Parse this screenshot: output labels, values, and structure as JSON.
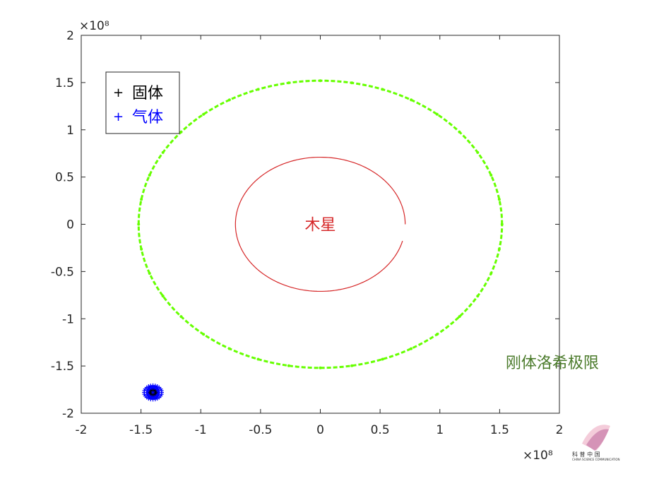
{
  "chart_data": {
    "type": "line",
    "title": "",
    "xlabel": "",
    "ylabel": "",
    "xlim": [
      -2,
      2
    ],
    "ylim": [
      -2,
      2
    ],
    "x_ticks": [
      -2,
      -1.5,
      -1,
      -0.5,
      0,
      0.5,
      1,
      1.5,
      2
    ],
    "y_ticks": [
      -2,
      -1.5,
      -1,
      -0.5,
      0,
      0.5,
      1,
      1.5,
      2
    ],
    "x_tick_labels": [
      "-2",
      "-1.5",
      "-1",
      "-0.5",
      "0",
      "0.5",
      "1",
      "1.5",
      "2"
    ],
    "y_tick_labels": [
      "-2",
      "-1.5",
      "-1",
      "-0.5",
      "0",
      "0.5",
      "1",
      "1.5",
      "2"
    ],
    "x_exponent_label": "×10⁸",
    "y_exponent_label": "×10⁸",
    "grid": false,
    "legend_position": "top-left",
    "legend": [
      {
        "label": "固体",
        "marker": "+",
        "color": "#000000"
      },
      {
        "label": "气体",
        "marker": "+",
        "color": "#0000ff"
      }
    ],
    "series": [
      {
        "kind": "circle",
        "center": [
          0,
          0
        ],
        "radius": 0.71,
        "color": "#d62728",
        "style": "solid",
        "open_end": true
      },
      {
        "kind": "circle",
        "center": [
          0,
          0
        ],
        "radius": 1.52,
        "color": "#66ff00",
        "style": "dashed",
        "markers": true
      },
      {
        "kind": "cluster",
        "center": [
          -1.4,
          -1.78
        ],
        "radius": 0.07,
        "color": "#0000ff",
        "inner_color": "#000000"
      }
    ],
    "annotations": [
      {
        "text": "木星",
        "x": 0,
        "y": 0,
        "color": "#d62728"
      },
      {
        "text": "刚体洛希极限",
        "x": 1.55,
        "y": -1.46,
        "color": "#4a7a2a"
      }
    ]
  },
  "logo": {
    "text": "科 普 中 国",
    "subtext": "CHINA SCIENCE COMMUNICATION"
  }
}
